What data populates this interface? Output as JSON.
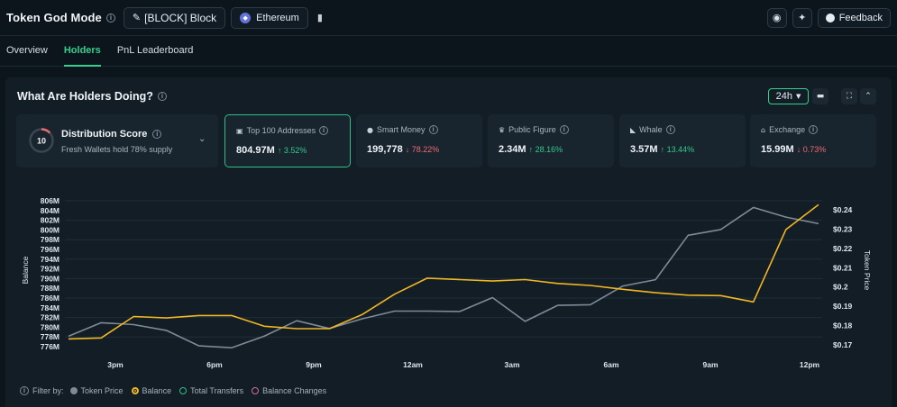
{
  "header": {
    "title": "Token God Mode",
    "token_label": "[BLOCK] Block",
    "chain_label": "Ethereum",
    "feedback_label": "Feedback"
  },
  "tabs": [
    {
      "label": "Overview",
      "active": false
    },
    {
      "label": "Holders",
      "active": true
    },
    {
      "label": "PnL Leaderboard",
      "active": false
    }
  ],
  "panel": {
    "title": "What Are Holders Doing?",
    "period": "24h"
  },
  "distribution": {
    "score": "10",
    "title": "Distribution Score",
    "subtitle": "Fresh Wallets hold 78% supply"
  },
  "cards": [
    {
      "label": "Top 100 Addresses",
      "value": "804.97M",
      "change": "↑ 3.52%",
      "dir": "up",
      "icon": "wallet-icon"
    },
    {
      "label": "Smart Money",
      "value": "199,778",
      "change": "↓ 78.22%",
      "dir": "down",
      "icon": "brain-icon"
    },
    {
      "label": "Public Figure",
      "value": "2.34M",
      "change": "↑ 28.16%",
      "dir": "up",
      "icon": "user-icon"
    },
    {
      "label": "Whale",
      "value": "3.57M",
      "change": "↑ 13.44%",
      "dir": "up",
      "icon": "whale-icon"
    },
    {
      "label": "Exchange",
      "value": "15.99M",
      "change": "↓ 0.73%",
      "dir": "down",
      "icon": "bank-icon"
    }
  ],
  "legend": {
    "prefix": "Filter by:",
    "items": [
      {
        "label": "Token Price",
        "color": "#7e8a96",
        "filled": true
      },
      {
        "label": "Balance",
        "color": "#f2b623",
        "filled": true
      },
      {
        "label": "Total Transfers",
        "color": "#2fbe8a",
        "filled": false
      },
      {
        "label": "Balance Changes",
        "color": "#d36aa3",
        "filled": false
      }
    ]
  },
  "chart_data": {
    "type": "line",
    "xlabel": "",
    "ylabel": "Balance",
    "y2label": "Token Price",
    "x_ticks": [
      "3pm",
      "6pm",
      "9pm",
      "12am",
      "3am",
      "6am",
      "9am",
      "12pm"
    ],
    "y_ticks": [
      "806M",
      "804M",
      "802M",
      "800M",
      "798M",
      "796M",
      "794M",
      "792M",
      "790M",
      "788M",
      "786M",
      "784M",
      "782M",
      "780M",
      "778M",
      "776M"
    ],
    "y2_ticks": [
      "$0.24",
      "$0.23",
      "$0.22",
      "$0.21",
      "$0.2",
      "$0.19",
      "$0.18",
      "$0.17"
    ],
    "ylim": [
      776,
      806
    ],
    "y2lim": [
      0.17,
      0.24
    ],
    "x": [
      0,
      1,
      2,
      3,
      4,
      5,
      6,
      7,
      8,
      9,
      10,
      11,
      12,
      13,
      14,
      15,
      16,
      17,
      18,
      19,
      20,
      21,
      22,
      23
    ],
    "series": [
      {
        "name": "Token Price",
        "color": "#7e8a96",
        "axis": "right",
        "values": [
          0.1745,
          0.1815,
          0.1805,
          0.1775,
          0.1695,
          0.1685,
          0.1745,
          0.1825,
          0.1785,
          0.1835,
          0.1875,
          0.1875,
          0.1873,
          0.1945,
          0.1822,
          0.1905,
          0.1908,
          0.2005,
          0.2038,
          0.2268,
          0.2298,
          0.2412,
          0.2362,
          0.2328
        ]
      },
      {
        "name": "Balance",
        "color": "#f2b623",
        "axis": "left",
        "values": [
          777.6,
          777.8,
          782.2,
          781.9,
          782.4,
          782.4,
          780.2,
          779.7,
          779.7,
          782.6,
          786.8,
          790.1,
          789.8,
          789.5,
          789.8,
          789.0,
          788.6,
          787.8,
          787.1,
          786.6,
          786.5,
          785.2,
          800.1,
          805.2
        ]
      }
    ],
    "grid": true,
    "legend_position": "bottom-left"
  }
}
